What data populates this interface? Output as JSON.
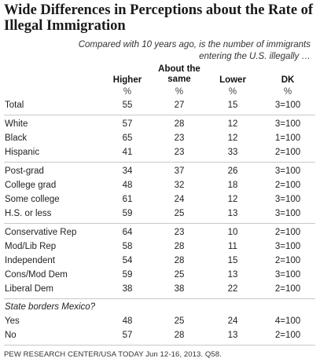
{
  "title": "Wide Differences in Perceptions about the Rate of Illegal Immigration",
  "subtitle": "Compared with 10 years ago, is the number of immigrants entering the U.S. illegally …",
  "columns": [
    {
      "label": "Higher",
      "unit": "%"
    },
    {
      "label": "About the same",
      "unit": "%"
    },
    {
      "label": "Lower",
      "unit": "%"
    },
    {
      "label": "DK",
      "unit": "%"
    }
  ],
  "rows": [
    {
      "label": "Total",
      "values": [
        "55",
        "27",
        "15",
        "3=100"
      ]
    },
    {
      "label": "White",
      "values": [
        "57",
        "28",
        "12",
        "3=100"
      ]
    },
    {
      "label": "Black",
      "values": [
        "65",
        "23",
        "12",
        "1=100"
      ]
    },
    {
      "label": "Hispanic",
      "values": [
        "41",
        "23",
        "33",
        "2=100"
      ]
    },
    {
      "label": "Post-grad",
      "values": [
        "34",
        "37",
        "26",
        "3=100"
      ]
    },
    {
      "label": "College grad",
      "values": [
        "48",
        "32",
        "18",
        "2=100"
      ]
    },
    {
      "label": "Some college",
      "values": [
        "61",
        "24",
        "12",
        "3=100"
      ]
    },
    {
      "label": "H.S. or less",
      "values": [
        "59",
        "25",
        "13",
        "3=100"
      ]
    },
    {
      "label": "Conservative Rep",
      "values": [
        "64",
        "23",
        "10",
        "2=100"
      ]
    },
    {
      "label": "Mod/Lib Rep",
      "values": [
        "58",
        "28",
        "11",
        "3=100"
      ]
    },
    {
      "label": "Independent",
      "values": [
        "54",
        "28",
        "15",
        "2=100"
      ]
    },
    {
      "label": "Cons/Mod Dem",
      "values": [
        "59",
        "25",
        "13",
        "3=100"
      ]
    },
    {
      "label": "Liberal Dem",
      "values": [
        "38",
        "38",
        "22",
        "2=100"
      ]
    },
    {
      "label": "Yes",
      "values": [
        "48",
        "25",
        "24",
        "4=100"
      ]
    },
    {
      "label": "No",
      "values": [
        "57",
        "28",
        "13",
        "2=100"
      ]
    }
  ],
  "section_label": "State borders Mexico?",
  "footer": "PEW RESEARCH CENTER/USA TODAY Jun 12-16, 2013. Q58."
}
